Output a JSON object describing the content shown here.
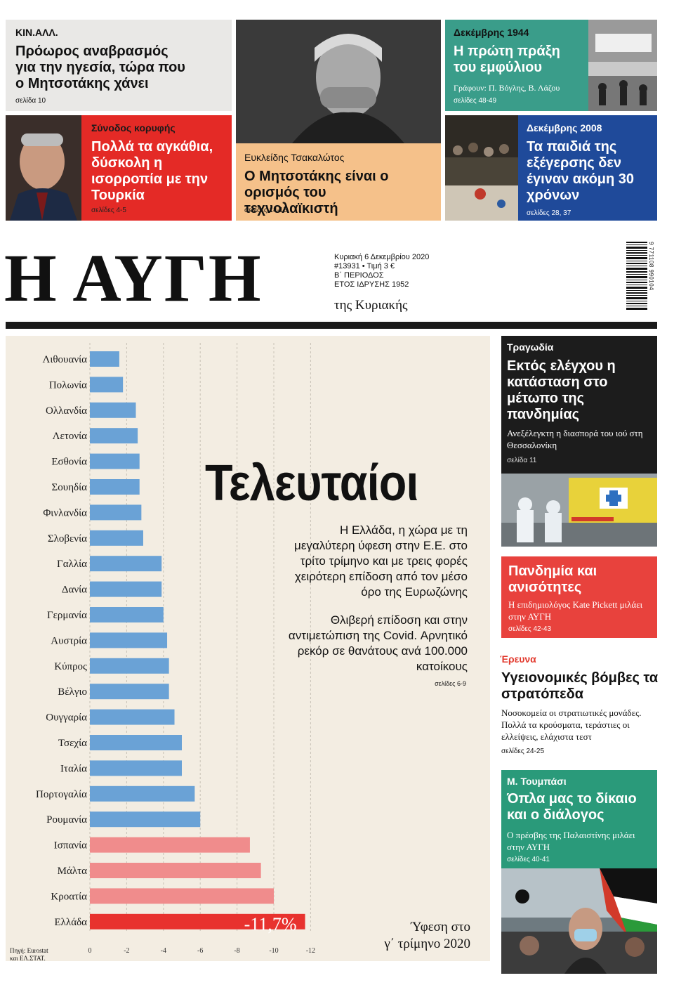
{
  "top": {
    "kinal": {
      "kicker": "ΚΙΝ.ΑΛΛ.",
      "headline": "Πρόωρος αναβρασμός για την ηγεσία, τώρα που ο Μητσοτάκης χάνει",
      "pages": "σελίδα 10"
    },
    "summit": {
      "kicker": "Σύνοδος κορυφής",
      "headline": "Πολλά τα αγκάθια, δύσκολη η ισορροπία με την Τουρκία",
      "pages": "σελίδες 4-5"
    },
    "tsakalotos": {
      "kicker": "Ευκλείδης Τσακαλώτος",
      "headline": "Ο Μητσοτάκης είναι ο ορισμός του τεχνολαϊκιστή",
      "pages": "σελίδες 14-15"
    },
    "dec1944": {
      "kicker": "Δεκέμβρης 1944",
      "headline": "Η πρώτη πράξη του εμφύλιου",
      "byline": "Γράφουν: Π. Βόγλης, Β. Λάζου",
      "pages": "σελίδες 48-49"
    },
    "dec2008": {
      "kicker": "Δεκέμβρης 2008",
      "headline": "Τα παιδιά της εξέγερσης δεν έγιναν ακόμη 30 χρόνων",
      "pages": "σελίδες 28, 37"
    }
  },
  "masthead": {
    "title": "Η ΑΥΓΗ",
    "date": "Κυριακή 6 Δεκεμβρίου 2020",
    "issue": "#13931  •  Τιμή 3 €",
    "period": "Β΄ ΠΕΡΙΟΔΟΣ",
    "founded": "ΕΤΟΣ ΙΔΡΥΣΗΣ 1952",
    "subtitle": "της Κυριακής",
    "barcode": "9 771108 990104"
  },
  "lead": {
    "title": "Τελευταίοι",
    "deck": "Η Ελλάδα, η χώρα με τη μεγαλύτερη ύφεση στην Ε.Ε. στο τρίτο τρίμηνο και με τρεις φορές χειρότερη επίδοση από τον μέσο όρο της Ευρωζώνης",
    "deck2": "Θλιβερή επίδοση και στην αντιμετώπιση της Covid. Αρνητικό ρεκόρ σε θανάτους ανά 100.000 κατοίκους",
    "pages": "σελίδες 6-9",
    "recession_line1": "Ύφεση στο",
    "recession_line2": "γ΄ τρίμηνο 2020",
    "source_line1": "Πηγή: Eurostat",
    "source_line2": "και ΕΛ.ΣΤΑΤ.",
    "greece_label": "-11,7%"
  },
  "chart_data": {
    "type": "bar",
    "orientation": "horizontal",
    "categories": [
      "Λιθουανία",
      "Πολωνία",
      "Ολλανδία",
      "Λετονία",
      "Εσθονία",
      "Σουηδία",
      "Φινλανδία",
      "Σλοβενία",
      "Γαλλία",
      "Δανία",
      "Γερμανία",
      "Αυστρία",
      "Κύπρος",
      "Βέλγιο",
      "Ουγγαρία",
      "Τσεχία",
      "Ιταλία",
      "Πορτογαλία",
      "Ρουμανία",
      "Ισπανία",
      "Μάλτα",
      "Κροατία",
      "Ελλάδα"
    ],
    "values": [
      -1.6,
      -1.8,
      -2.5,
      -2.6,
      -2.7,
      -2.7,
      -2.8,
      -2.9,
      -3.9,
      -3.9,
      -4.0,
      -4.2,
      -4.3,
      -4.3,
      -4.6,
      -5.0,
      -5.0,
      -5.7,
      -6.0,
      -8.7,
      -9.3,
      -10.0,
      -11.7
    ],
    "colors": {
      "blue": "#6aa2d6",
      "pink": "#f08c8c",
      "red": "#e8322e"
    },
    "highlight_from_index": 19,
    "ticks": [
      "0",
      "-2",
      "-4",
      "-6",
      "-8",
      "-10",
      "-12"
    ],
    "xlim": [
      0,
      -12
    ],
    "title": "",
    "xlabel": "",
    "ylabel": ""
  },
  "side": {
    "tragedy": {
      "kicker": "Τραγωδία",
      "headline": "Εκτός ελέγχου η κατάσταση στο μέτωπο της πανδημίας",
      "sub": "Ανεξέλεγκτη η διασπορά του ιού στη Θεσσαλονίκη",
      "pages": "σελίδα 11"
    },
    "pandemic": {
      "headline": "Πανδημία και ανισότητες",
      "sub": "Η επιδημιολόγος Kate Pickett μιλάει στην ΑΥΓΗ",
      "pages": "σελίδες 42-43"
    },
    "research": {
      "kicker": "Έρευνα",
      "headline": "Υγειονομικές βόμβες τα στρατόπεδα",
      "sub": "Νοσοκομεία οι στρατιωτικές μονάδες. Πολλά τα κρούσματα, τεράστιες οι ελλείψεις, ελάχιστα τεστ",
      "pages": "σελίδες 24-25"
    },
    "toumpasi": {
      "kicker": "Μ. Τουμπάσι",
      "headline": "Όπλα μας το δίκαιο και ο διάλογος",
      "sub": "Ο πρέσβης της Παλαιστίνης μιλάει στην ΑΥΓΗ",
      "pages": "σελίδες 40-41"
    }
  }
}
